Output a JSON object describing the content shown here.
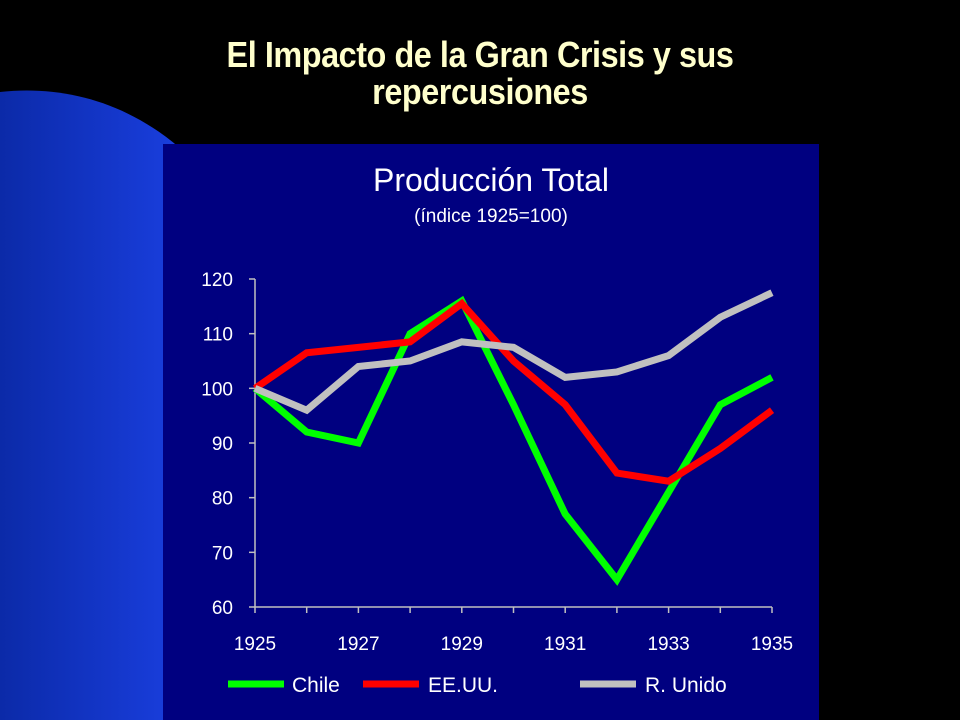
{
  "slide": {
    "title_line1": "El Impacto de la Gran Crisis y sus",
    "title_line2": "repercusiones"
  },
  "colors": {
    "panel": "#000080",
    "chile": "#00FF00",
    "eeuu": "#FF0000",
    "runido": "#C0C0C0",
    "title": "#FFFFCC"
  },
  "chart_data": {
    "type": "line",
    "title": "Producción Total",
    "subtitle": "(índice 1925=100)",
    "xlabel": "",
    "ylabel": "",
    "x": [
      1925,
      1926,
      1927,
      1928,
      1929,
      1930,
      1931,
      1932,
      1933,
      1934,
      1935
    ],
    "xticks": [
      "1925",
      "1927",
      "1929",
      "1931",
      "1933",
      "1935"
    ],
    "yticks": [
      "60",
      "70",
      "80",
      "90",
      "100",
      "110",
      "120"
    ],
    "ylim": [
      60,
      120
    ],
    "grid": false,
    "legend": "bottom",
    "series": [
      {
        "name": "Chile",
        "color": "#00FF00",
        "values": [
          100,
          92,
          90,
          110,
          116,
          97,
          77,
          65,
          81,
          97,
          102
        ]
      },
      {
        "name": "EE.UU.",
        "color": "#FF0000",
        "values": [
          100,
          106.5,
          107.5,
          108.5,
          115.5,
          105,
          97,
          84.5,
          83,
          89,
          96
        ]
      },
      {
        "name": "R. Unido",
        "color": "#C0C0C0",
        "values": [
          100,
          96,
          104,
          105,
          108.5,
          107.5,
          102,
          103,
          106,
          113,
          117.5
        ]
      }
    ]
  }
}
